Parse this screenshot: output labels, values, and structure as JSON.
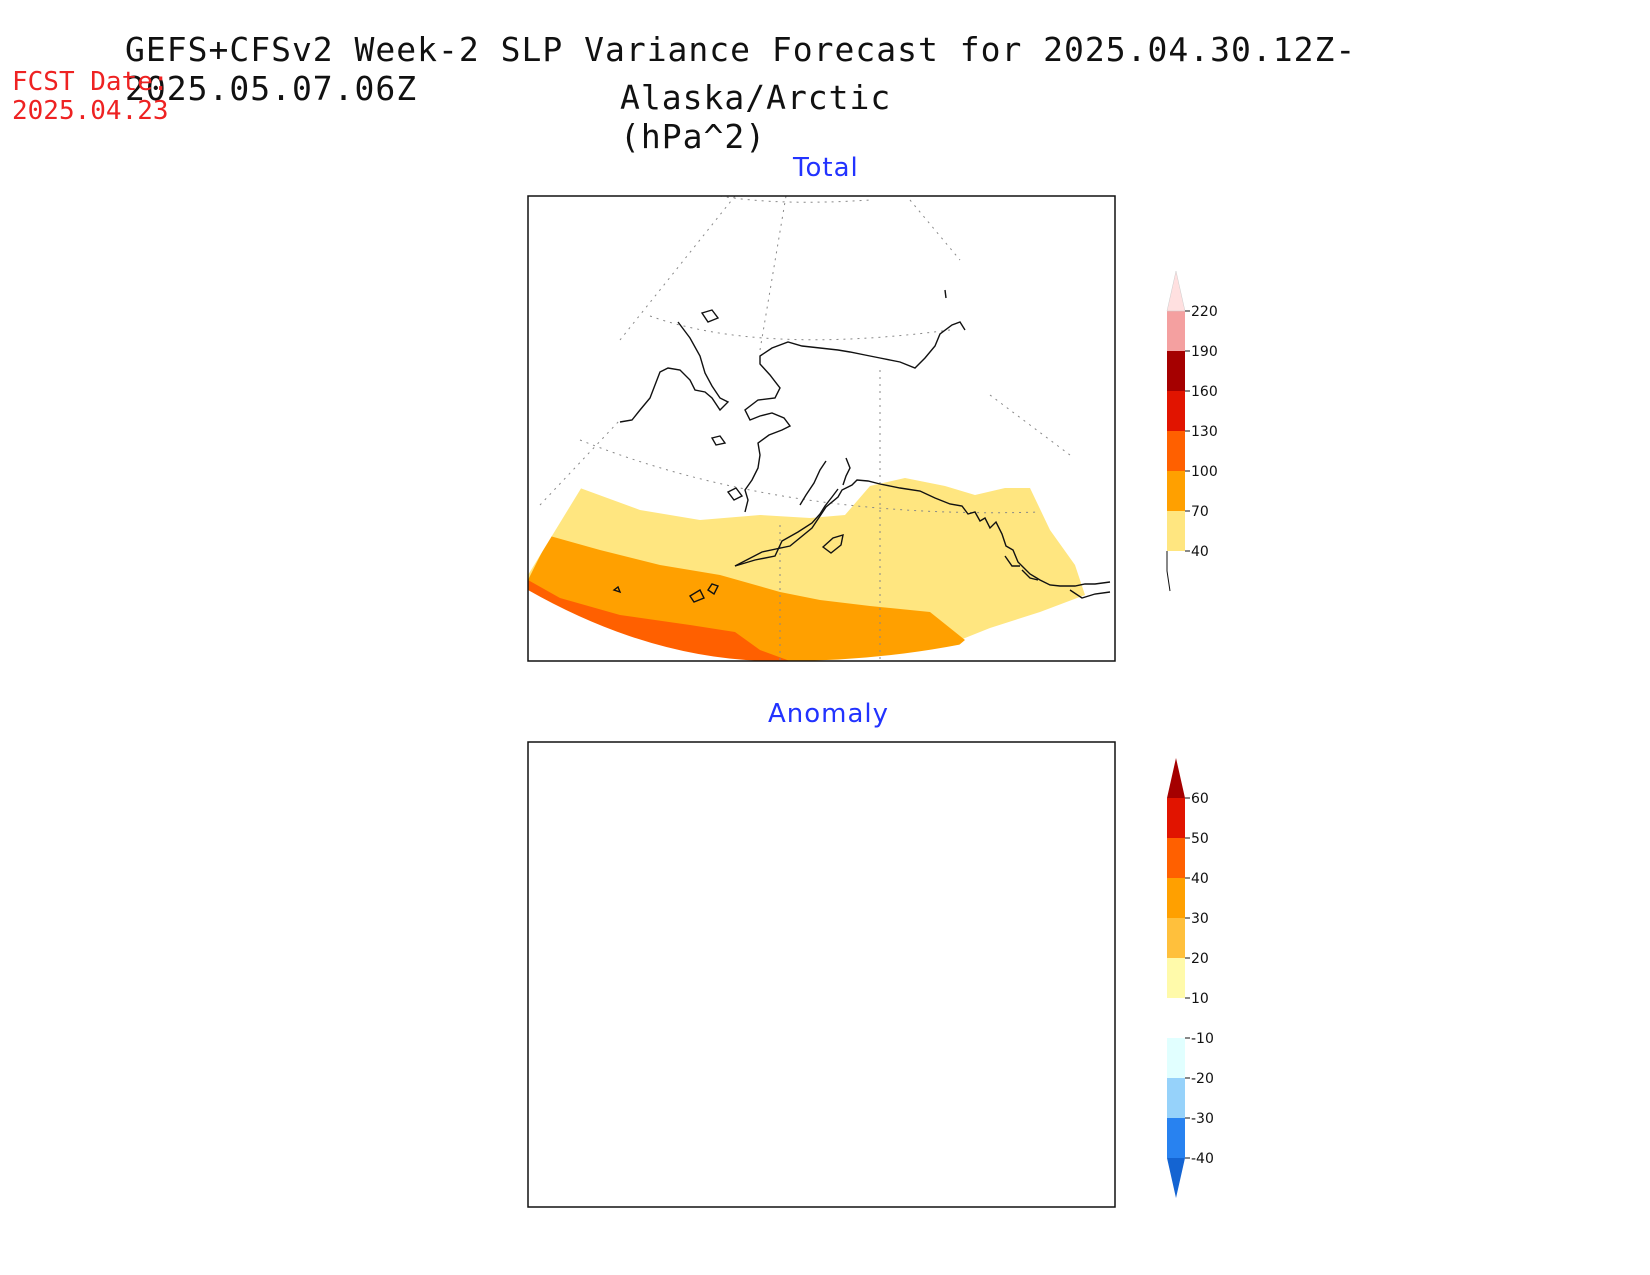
{
  "title": {
    "line1": "GEFS+CFSv2 Week-2 SLP Variance Forecast for 2025.04.30.12Z-2025.05.07.06Z",
    "line2": "Alaska/Arctic (hPa^2)"
  },
  "forecast_date": {
    "label": "FCST Date:",
    "value": "2025.04.23"
  },
  "panels": [
    {
      "title": "Total",
      "colorbar": {
        "levels": [
          "40",
          "70",
          "100",
          "130",
          "160",
          "190",
          "220"
        ],
        "colors": [
          "#ffe680",
          "#ffa000",
          "#ff6000",
          "#e11400",
          "#a50000",
          "#f4a0a0",
          "#ffe0e0"
        ]
      }
    },
    {
      "title": "Anomaly",
      "colorbar": {
        "levels": [
          "-40",
          "-30",
          "-20",
          "-10",
          "10",
          "20",
          "30",
          "40",
          "50",
          "60"
        ],
        "colors": [
          "#1464d2",
          "#2882f0",
          "#96d2fa",
          "#e1ffff",
          "#ffffff",
          "#fffaaa",
          "#ffc03c",
          "#ffa000",
          "#ff6000",
          "#e11400",
          "#a50000"
        ]
      }
    }
  ],
  "colors": {
    "title_text": "#111111",
    "fcst_text": "#ee2222",
    "panel_title_text": "#2233ff"
  }
}
